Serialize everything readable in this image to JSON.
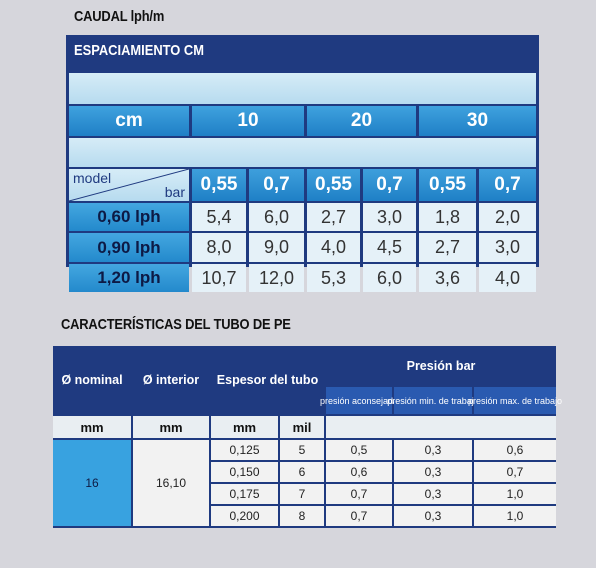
{
  "table1": {
    "section_title": "CAUDAL lph/m",
    "header": "ESPACIAMIENTO CM",
    "spacing_label": "cm",
    "spacings": [
      "10",
      "20",
      "30"
    ],
    "model_label": "model",
    "bar_label": "bar",
    "pressures": [
      "0,55",
      "0,7",
      "0,55",
      "0,7",
      "0,55",
      "0,7"
    ],
    "rows": [
      {
        "model": "0,60 lph",
        "values": [
          "5,4",
          "6,0",
          "2,7",
          "3,0",
          "1,8",
          "2,0"
        ]
      },
      {
        "model": "0,90 lph",
        "values": [
          "8,0",
          "9,0",
          "4,0",
          "4,5",
          "2,7",
          "3,0"
        ]
      },
      {
        "model": "1,20 lph",
        "values": [
          "10,7",
          "12,0",
          "5,3",
          "6,0",
          "3,6",
          "4,0"
        ]
      }
    ]
  },
  "table2": {
    "section_title": "CARACTERÍSTICAS DEL TUBO DE PE",
    "headers": {
      "nominal": "Ø nominal",
      "interior": "Ø interior",
      "espesor": "Espesor del tubo",
      "presion": "Presión bar",
      "presion_aconsejada": "presión aconsejada",
      "presion_min": "presión min. de trabajo",
      "presion_max": "presión max. de trabajo"
    },
    "units": {
      "nominal": "mm",
      "interior": "mm",
      "espesor_mm": "mm",
      "espesor_mil": "mil"
    },
    "nominal_value": "16",
    "interior_value": "16,10",
    "rows": [
      {
        "mm": "0,125",
        "mil": "5",
        "aconsejada": "0,5",
        "min": "0,3",
        "max": "0,6"
      },
      {
        "mm": "0,150",
        "mil": "6",
        "aconsejada": "0,6",
        "min": "0,3",
        "max": "0,7"
      },
      {
        "mm": "0,175",
        "mil": "7",
        "aconsejada": "0,7",
        "min": "0,3",
        "max": "1,0"
      },
      {
        "mm": "0,200",
        "mil": "8",
        "aconsejada": "0,7",
        "min": "0,3",
        "max": "1,0"
      }
    ]
  }
}
